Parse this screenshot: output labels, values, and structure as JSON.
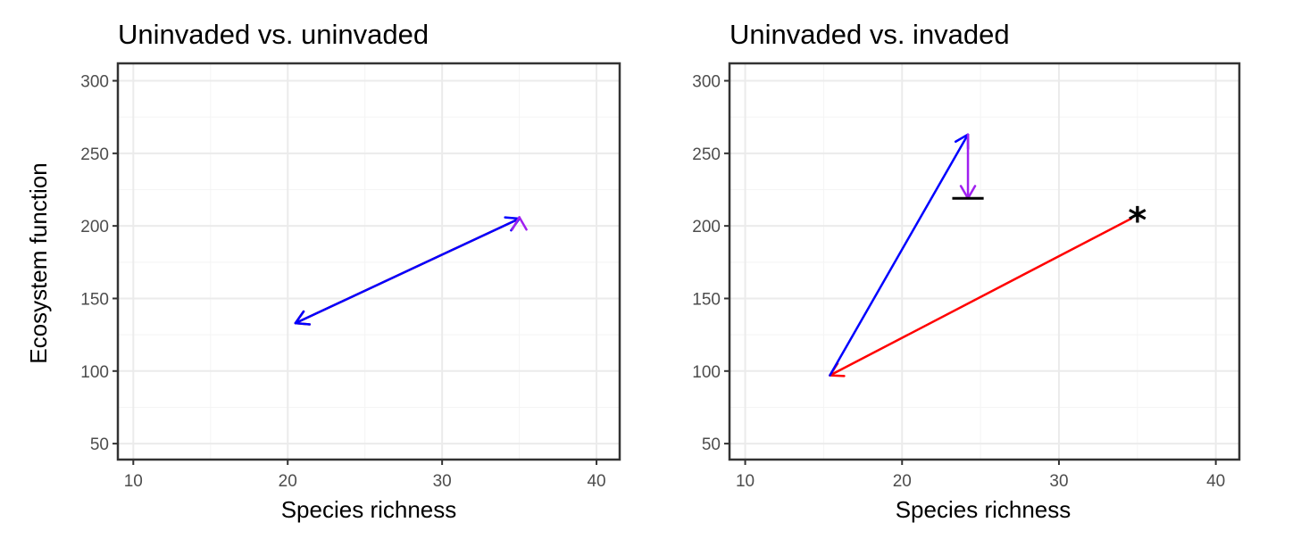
{
  "figure": {
    "ylabel": "Ecosystem function"
  },
  "chart_data": [
    {
      "type": "line",
      "title": "Uninvaded vs. uninvaded",
      "xlabel": "Species richness",
      "ylabel": "Ecosystem function",
      "xlim": [
        9,
        41.5
      ],
      "ylim": [
        39,
        312
      ],
      "x_ticks": [
        10,
        20,
        30,
        40
      ],
      "y_ticks": [
        50,
        100,
        150,
        200,
        250,
        300
      ],
      "grid": true,
      "arrows": [
        {
          "color": "#ff0000",
          "from": [
            35,
            205
          ],
          "to": [
            20.5,
            133
          ],
          "heads": "end"
        },
        {
          "color": "#0000ff",
          "from": [
            20.5,
            133
          ],
          "to": [
            35,
            205
          ],
          "heads": "both"
        },
        {
          "color": "#a020f0",
          "from": [
            35,
            205
          ],
          "to": [
            35,
            206
          ],
          "heads": "end"
        }
      ],
      "annotations": []
    },
    {
      "type": "line",
      "title": "Uninvaded vs. invaded",
      "xlabel": "Species richness",
      "ylabel": "",
      "xlim": [
        9,
        41.5
      ],
      "ylim": [
        39,
        312
      ],
      "x_ticks": [
        10,
        20,
        30,
        40
      ],
      "y_ticks": [
        50,
        100,
        150,
        200,
        250,
        300
      ],
      "grid": true,
      "arrows": [
        {
          "color": "#ff0000",
          "from": [
            34.6,
            205
          ],
          "to": [
            15.4,
            97
          ],
          "heads": "end"
        },
        {
          "color": "#0000ff",
          "from": [
            15.4,
            97
          ],
          "to": [
            24.2,
            263
          ],
          "heads": "end"
        },
        {
          "color": "#a020f0",
          "from": [
            24.2,
            263
          ],
          "to": [
            24.2,
            219
          ],
          "heads": "end"
        }
      ],
      "segments": [
        {
          "color": "#000000",
          "from": [
            23.2,
            219
          ],
          "to": [
            25.2,
            219
          ]
        }
      ],
      "annotations": [
        {
          "text": "*",
          "x": 35,
          "y": 209
        }
      ]
    }
  ]
}
